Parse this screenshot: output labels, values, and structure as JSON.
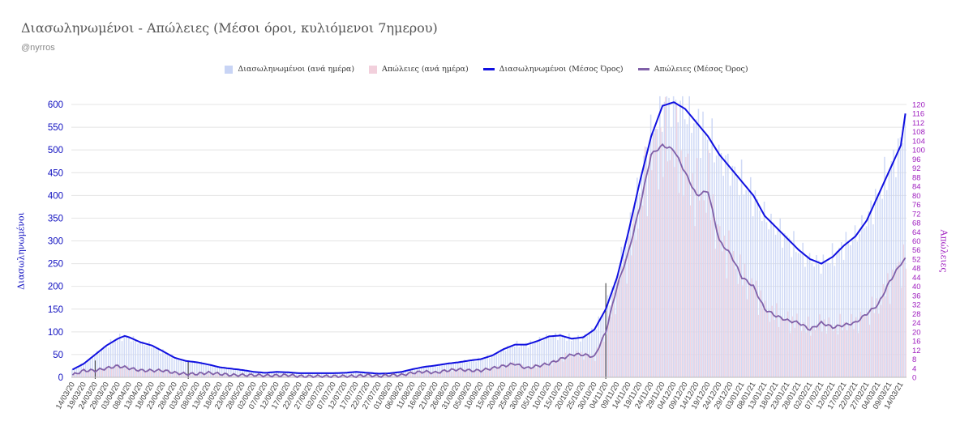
{
  "chart_data": {
    "type": "bar",
    "title": "Διασωληνωμένοι - Απώλειες (Μέσοι όροι, κυλιόμενοι 7ημερου)",
    "subtitle": "@nyrros",
    "ylabel_left": "Διασωληνωμένοι",
    "ylabel_right": "Απώλειες",
    "ylim_left": [
      0,
      600
    ],
    "ylim_right": [
      0,
      120
    ],
    "yticks_left": [
      0,
      50,
      100,
      150,
      200,
      250,
      300,
      350,
      400,
      450,
      500,
      550,
      600
    ],
    "yticks_right": [
      0,
      4,
      8,
      12,
      16,
      20,
      24,
      28,
      32,
      36,
      40,
      44,
      48,
      52,
      56,
      60,
      64,
      68,
      72,
      76,
      80,
      84,
      88,
      92,
      96,
      100,
      104,
      108,
      112,
      116,
      120
    ],
    "legend_position": "top-center",
    "grid": true,
    "series": [
      {
        "name": "Διασωληνωμένοι (ανά ημέρα)",
        "kind": "bar",
        "axis": "left",
        "color": "#c8d4f5",
        "source": "ma_left"
      },
      {
        "name": "Απώλειες (ανά ημέρα)",
        "kind": "bar",
        "axis": "right",
        "color": "#f2d0dc",
        "source": "ma_right"
      },
      {
        "name": "Διασωληνωμένοι (Μέσος Όρος)",
        "kind": "line",
        "axis": "left",
        "color": "#1010e0",
        "source": "ma_left"
      },
      {
        "name": "Απώλειες (Μέσος Όρος)",
        "kind": "line",
        "axis": "right",
        "color": "#8060a8",
        "source": "ma_right"
      }
    ],
    "start_date": "2020-03-14",
    "day_count": 368,
    "left_anchors": [
      [
        "14/03/20",
        17
      ],
      [
        "19/03/20",
        30
      ],
      [
        "24/03/20",
        50
      ],
      [
        "29/03/20",
        70
      ],
      [
        "03/04/20",
        85
      ],
      [
        "06/04/20",
        91
      ],
      [
        "08/04/20",
        88
      ],
      [
        "13/04/20",
        77
      ],
      [
        "18/04/20",
        70
      ],
      [
        "23/04/20",
        57
      ],
      [
        "28/04/20",
        43
      ],
      [
        "03/05/20",
        36
      ],
      [
        "08/05/20",
        33
      ],
      [
        "13/05/20",
        28
      ],
      [
        "18/05/20",
        22
      ],
      [
        "23/05/20",
        19
      ],
      [
        "28/05/20",
        16
      ],
      [
        "02/06/20",
        12
      ],
      [
        "07/06/20",
        10
      ],
      [
        "12/06/20",
        12
      ],
      [
        "17/06/20",
        11
      ],
      [
        "22/06/20",
        9
      ],
      [
        "27/06/20",
        9
      ],
      [
        "02/07/20",
        9
      ],
      [
        "07/07/20",
        9
      ],
      [
        "12/07/20",
        10
      ],
      [
        "17/07/20",
        12
      ],
      [
        "22/07/20",
        10
      ],
      [
        "27/07/20",
        8
      ],
      [
        "01/08/20",
        9
      ],
      [
        "06/08/20",
        12
      ],
      [
        "11/08/20",
        18
      ],
      [
        "16/08/20",
        23
      ],
      [
        "21/08/20",
        26
      ],
      [
        "26/08/20",
        30
      ],
      [
        "31/08/20",
        33
      ],
      [
        "05/09/20",
        37
      ],
      [
        "10/09/20",
        40
      ],
      [
        "15/09/20",
        48
      ],
      [
        "20/09/20",
        62
      ],
      [
        "25/09/20",
        72
      ],
      [
        "30/09/20",
        72
      ],
      [
        "05/10/20",
        80
      ],
      [
        "10/10/20",
        90
      ],
      [
        "15/10/20",
        92
      ],
      [
        "20/10/20",
        85
      ],
      [
        "25/10/20",
        88
      ],
      [
        "30/10/20",
        105
      ],
      [
        "04/11/20",
        150
      ],
      [
        "09/11/20",
        220
      ],
      [
        "14/11/20",
        320
      ],
      [
        "19/11/20",
        430
      ],
      [
        "24/11/20",
        530
      ],
      [
        "29/11/20",
        597
      ],
      [
        "04/12/20",
        605
      ],
      [
        "09/12/20",
        590
      ],
      [
        "14/12/20",
        560
      ],
      [
        "19/12/20",
        530
      ],
      [
        "24/12/20",
        490
      ],
      [
        "29/12/20",
        460
      ],
      [
        "03/01/21",
        430
      ],
      [
        "08/01/21",
        400
      ],
      [
        "13/01/21",
        355
      ],
      [
        "18/01/21",
        330
      ],
      [
        "23/01/21",
        305
      ],
      [
        "28/01/21",
        280
      ],
      [
        "02/02/21",
        260
      ],
      [
        "07/02/21",
        250
      ],
      [
        "12/02/21",
        265
      ],
      [
        "17/02/21",
        290
      ],
      [
        "22/02/21",
        310
      ],
      [
        "27/02/21",
        345
      ],
      [
        "04/03/21",
        400
      ],
      [
        "09/03/21",
        455
      ],
      [
        "14/03/21",
        510
      ],
      [
        "16/03/21",
        580
      ]
    ],
    "right_anchors": [
      [
        "14/03/20",
        1
      ],
      [
        "19/03/20",
        3
      ],
      [
        "24/03/20",
        3
      ],
      [
        "29/03/20",
        4
      ],
      [
        "03/04/20",
        5
      ],
      [
        "08/04/20",
        4
      ],
      [
        "13/04/20",
        3
      ],
      [
        "18/04/20",
        3
      ],
      [
        "23/04/20",
        3
      ],
      [
        "28/04/20",
        2
      ],
      [
        "03/05/20",
        1.5
      ],
      [
        "08/05/20",
        1.5
      ],
      [
        "13/05/20",
        2
      ],
      [
        "18/05/20",
        1.5
      ],
      [
        "23/05/20",
        1
      ],
      [
        "28/05/20",
        1
      ],
      [
        "02/06/20",
        1
      ],
      [
        "07/06/20",
        0.8
      ],
      [
        "12/06/20",
        0.8
      ],
      [
        "17/06/20",
        1
      ],
      [
        "22/06/20",
        0.5
      ],
      [
        "27/06/20",
        0.5
      ],
      [
        "02/07/20",
        0.5
      ],
      [
        "07/07/20",
        0.5
      ],
      [
        "12/07/20",
        0.5
      ],
      [
        "17/07/20",
        0.5
      ],
      [
        "22/07/20",
        1
      ],
      [
        "27/07/20",
        0.5
      ],
      [
        "01/08/20",
        1
      ],
      [
        "06/08/20",
        1
      ],
      [
        "11/08/20",
        2
      ],
      [
        "16/08/20",
        2.5
      ],
      [
        "21/08/20",
        2
      ],
      [
        "26/08/20",
        3
      ],
      [
        "31/08/20",
        3.5
      ],
      [
        "05/09/20",
        3
      ],
      [
        "10/09/20",
        3
      ],
      [
        "15/09/20",
        4
      ],
      [
        "20/09/20",
        5
      ],
      [
        "25/09/20",
        6
      ],
      [
        "30/09/20",
        4
      ],
      [
        "05/10/20",
        5
      ],
      [
        "10/10/20",
        6
      ],
      [
        "15/10/20",
        8
      ],
      [
        "20/10/20",
        10
      ],
      [
        "25/10/20",
        10
      ],
      [
        "30/10/20",
        9
      ],
      [
        "04/11/20",
        20
      ],
      [
        "09/11/20",
        40
      ],
      [
        "14/11/20",
        55
      ],
      [
        "19/11/20",
        75
      ],
      [
        "24/11/20",
        98
      ],
      [
        "29/11/20",
        102
      ],
      [
        "04/12/20",
        100
      ],
      [
        "09/12/20",
        90
      ],
      [
        "14/12/20",
        80
      ],
      [
        "19/12/20",
        82
      ],
      [
        "24/12/20",
        60
      ],
      [
        "29/12/20",
        54
      ],
      [
        "03/01/21",
        44
      ],
      [
        "08/01/21",
        40
      ],
      [
        "13/01/21",
        30
      ],
      [
        "18/01/21",
        27
      ],
      [
        "23/01/21",
        25
      ],
      [
        "28/01/21",
        24
      ],
      [
        "02/02/21",
        21
      ],
      [
        "07/02/21",
        24
      ],
      [
        "12/02/21",
        22
      ],
      [
        "17/02/21",
        23
      ],
      [
        "22/02/21",
        24
      ],
      [
        "27/02/21",
        28
      ],
      [
        "04/03/21",
        32
      ],
      [
        "09/03/21",
        42
      ],
      [
        "14/03/21",
        50
      ],
      [
        "16/03/21",
        52
      ]
    ],
    "x_tick_labels": [
      "14/03/20",
      "19/03/20",
      "24/03/20",
      "29/03/20",
      "03/04/20",
      "08/04/20",
      "13/04/20",
      "18/04/20",
      "23/04/20",
      "28/04/20",
      "03/05/20",
      "08/05/20",
      "13/05/20",
      "18/05/20",
      "23/05/20",
      "28/05/20",
      "02/06/20",
      "07/06/20",
      "12/06/20",
      "17/06/20",
      "22/06/20",
      "27/06/20",
      "02/07/20",
      "07/07/20",
      "12/07/20",
      "17/07/20",
      "22/07/20",
      "27/07/20",
      "01/08/20",
      "06/08/20",
      "11/08/20",
      "16/08/20",
      "21/08/20",
      "26/08/20",
      "31/08/20",
      "05/09/20",
      "10/09/20",
      "15/09/20",
      "20/09/20",
      "25/09/20",
      "30/09/20",
      "05/10/20",
      "10/10/20",
      "15/10/20",
      "20/10/20",
      "25/10/20",
      "30/10/20",
      "04/11/20",
      "09/11/20",
      "14/11/20",
      "19/11/20",
      "24/11/20",
      "29/11/20",
      "04/12/20",
      "09/12/20",
      "14/12/20",
      "19/12/20",
      "24/12/20",
      "29/12/20",
      "03/01/21",
      "08/01/21",
      "13/01/21",
      "18/01/21",
      "23/01/21",
      "28/01/21",
      "02/02/21",
      "07/02/21",
      "12/02/21",
      "17/02/21",
      "22/02/21",
      "27/02/21",
      "04/03/21",
      "09/03/21",
      "14/03/21"
    ],
    "markers": [
      "24/03/20",
      "04/05/20",
      "04/11/20"
    ]
  },
  "colors": {
    "left_axis_text": "#1010c0",
    "right_axis_text": "#a020c0",
    "grid": "#e4e4e4"
  }
}
